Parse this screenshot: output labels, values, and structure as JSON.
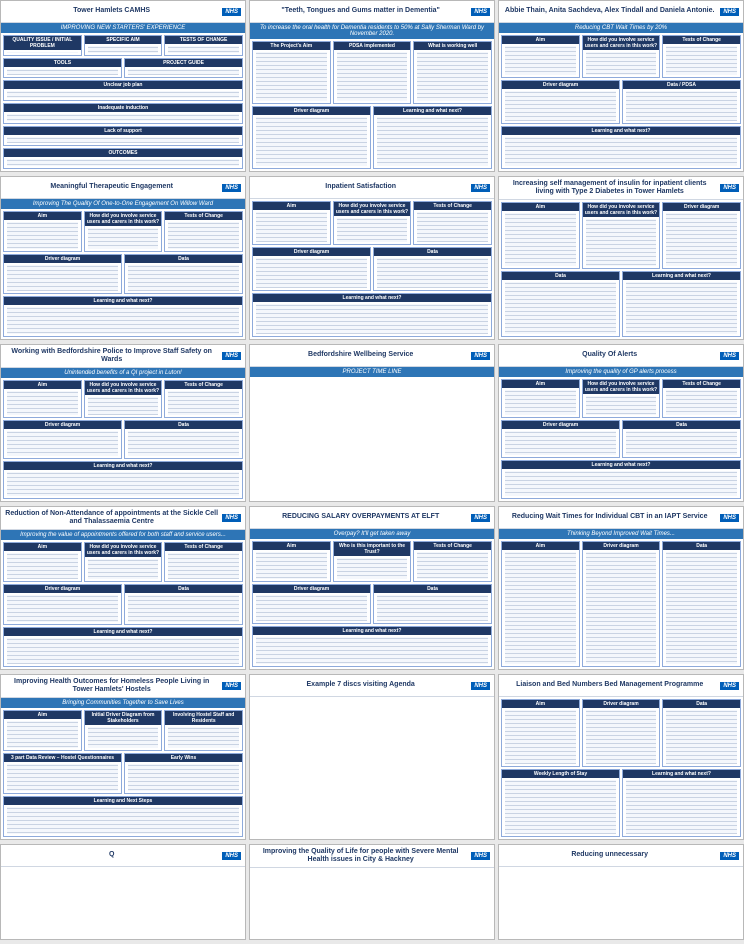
{
  "logo_text": "NHS",
  "posters": [
    {
      "title": "Tower Hamlets CAMHS",
      "subtitle": "IMPROVING NEW STARTERS' EXPERIENCE",
      "sections": [
        "QUALITY ISSUE / INITIAL PROBLEM",
        "SPECIFIC AIM",
        "TESTS OF CHANGE",
        "TOOLS",
        "PROJECT GUIDE",
        "Unclear job plan",
        "Inadequate induction",
        "Lack of support",
        "OUTCOMES"
      ]
    },
    {
      "title": "\"Teeth, Tongues and Gums matter in Dementia\"",
      "subtitle": "To increase the oral health for Dementia residents to 50% at Sally Sherman Ward by November 2020.",
      "sections": [
        "The Project's Aim",
        "PDSA implemented",
        "What is working well",
        "Driver diagram",
        "Learning and what next?"
      ]
    },
    {
      "title": "Abbie Thain, Anita Sachdeva, Alex Tindall and Daniela Antonie.",
      "subtitle": "Reducing CBT Wait Times by 20%",
      "sections": [
        "Aim",
        "How did you involve service users and carers in this work?",
        "Tests of Change",
        "Driver diagram",
        "Data / PDSA",
        "Learning and what next?"
      ]
    },
    {
      "title": "Meaningful Therapeutic Engagement",
      "subtitle": "Improving The Quality Of One-to-One Engagement On Willow Ward",
      "sections": [
        "Aim",
        "How did you involve service users and carers in this work?",
        "Tests of Change",
        "Driver diagram",
        "Data",
        "Learning and what next?"
      ]
    },
    {
      "title": "Inpatient Satisfaction",
      "subtitle": null,
      "sections": [
        "Aim",
        "How did you involve service users and carers in this work?",
        "Tests of Change",
        "Driver diagram",
        "Data",
        "Learning and what next?"
      ]
    },
    {
      "title": "Increasing self management of insulin for inpatient clients living with Type 2 Diabetes in Tower Hamlets",
      "subtitle": null,
      "sections": [
        "Aim",
        "How did you involve service users and carers in this work?",
        "Driver diagram",
        "Data",
        "Learning and what next?"
      ]
    },
    {
      "title": "Working with Bedfordshire Police to Improve Staff Safety on Wards",
      "subtitle": "Unintended benefits of a QI project in Luton!",
      "sections": [
        "Aim",
        "How did you involve service users and carers in this work?",
        "Tests of Change",
        "Driver diagram",
        "Data",
        "Learning and what next?"
      ]
    },
    {
      "title": "Bedfordshire Wellbeing Service",
      "subtitle": "PROJECT TIME LINE",
      "sections": []
    },
    {
      "title": "Quality Of Alerts",
      "subtitle": "Improving the quality of GP alerts process",
      "sections": [
        "Aim",
        "How did you involve service users and carers in this work?",
        "Tests of Change",
        "Driver diagram",
        "Data",
        "Learning and what next?"
      ]
    },
    {
      "title": "Reduction of Non-Attendance of appointments at the Sickle Cell and Thalassaemia Centre",
      "subtitle": "Improving the value of appointments offered for both staff and service users...",
      "sections": [
        "Aim",
        "How did you involve service users and carers in this work?",
        "Tests of Change",
        "Driver diagram",
        "Data",
        "Learning and what next?"
      ]
    },
    {
      "title": "REDUCING SALARY OVERPAYMENTS AT ELFT",
      "subtitle": "Overpay? It'll get taken away",
      "sections": [
        "Aim",
        "Who is this important to the Trust?",
        "Tests of Change",
        "Driver diagram",
        "Data",
        "Learning and what next?"
      ]
    },
    {
      "title": "Reducing Wait Times for Individual CBT in an IAPT Service",
      "subtitle": "Thinking Beyond Improved Wait Times...",
      "sections": [
        "Aim",
        "Driver diagram",
        "Data"
      ]
    },
    {
      "title": "Improving Health Outcomes for Homeless People Living in Tower Hamlets' Hostels",
      "subtitle": "Bringing Communities Together to Save Lives",
      "sections": [
        "Aim",
        "Initial Driver Diagram from Stakeholders",
        "Involving Hostel Staff and Residents",
        "3 part Data Review – Hostel Questionnaires",
        "Early Wins",
        "Learning and Next Steps"
      ]
    },
    {
      "title": "Example 7 discs visiting Agenda",
      "subtitle": null,
      "sections": []
    },
    {
      "title": "Liaison and Bed Numbers Bed Management Programme",
      "subtitle": null,
      "sections": [
        "Aim",
        "Driver diagram",
        "Data",
        "Weekly Length of Stay",
        "Learning and what next?"
      ]
    },
    {
      "title": "Q",
      "subtitle": null,
      "sections": []
    },
    {
      "title": "Improving the Quality of Life for people with Severe Mental Health issues in City & Hackney",
      "subtitle": null,
      "sections": []
    },
    {
      "title": "Reducing unnecessary",
      "subtitle": null,
      "sections": []
    }
  ]
}
